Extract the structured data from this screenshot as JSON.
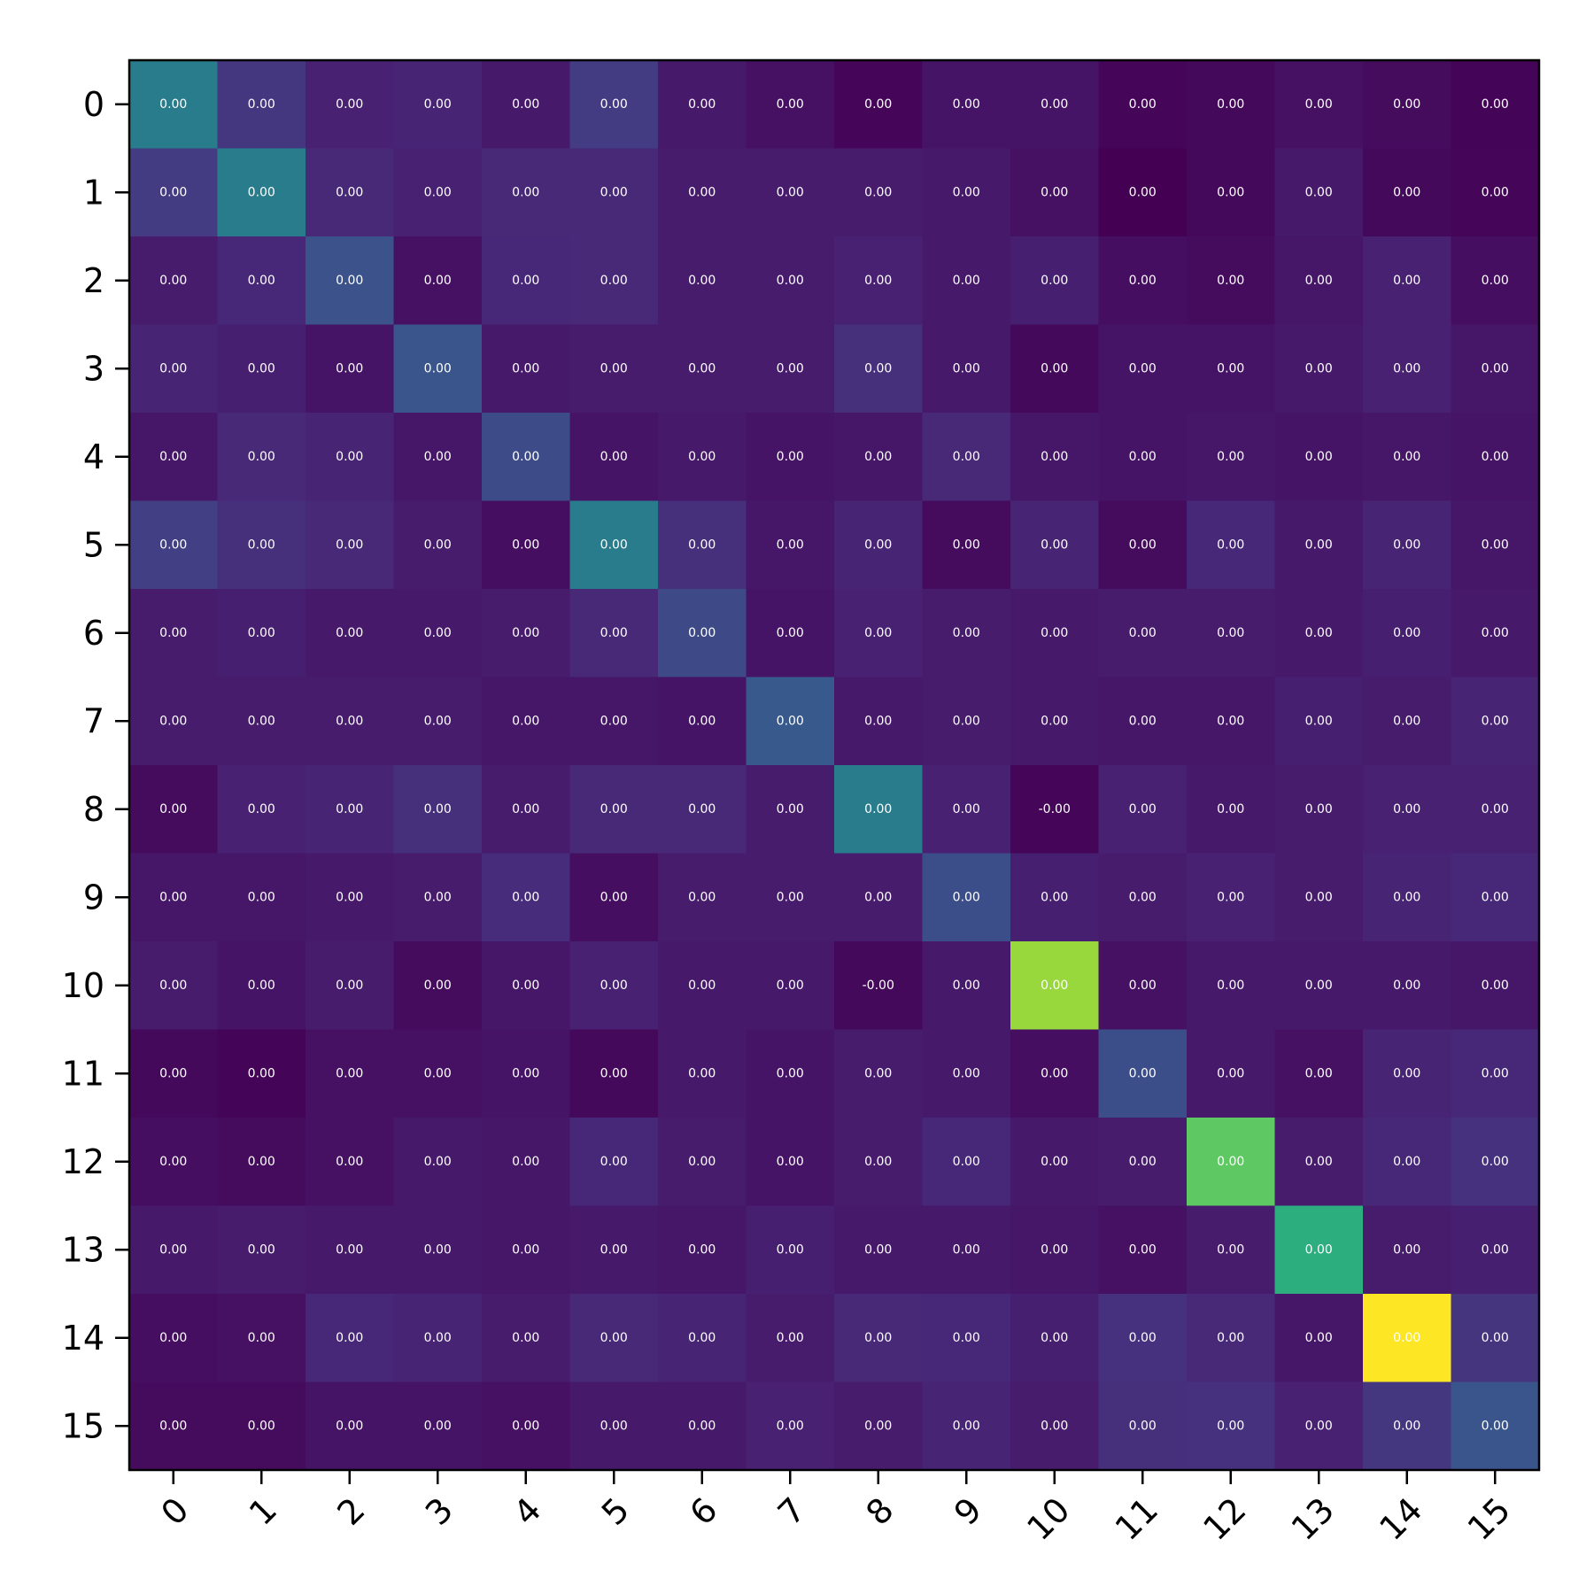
{
  "chart_data": {
    "type": "heatmap",
    "title": "",
    "xlabel": "",
    "ylabel": "",
    "colormap": "viridis",
    "x_categories": [
      "0",
      "1",
      "2",
      "3",
      "4",
      "5",
      "6",
      "7",
      "8",
      "9",
      "10",
      "11",
      "12",
      "13",
      "14",
      "15"
    ],
    "y_categories": [
      "0",
      "1",
      "2",
      "3",
      "4",
      "5",
      "6",
      "7",
      "8",
      "9",
      "10",
      "11",
      "12",
      "13",
      "14",
      "15"
    ],
    "x_tick_rotation_deg": 45,
    "grid": false,
    "cell_text_color": "#ffffff",
    "color_levels": [
      [
        0.45,
        0.2,
        0.12,
        0.13,
        0.09,
        0.22,
        0.09,
        0.06,
        0.02,
        0.07,
        0.07,
        0.02,
        0.03,
        0.06,
        0.04,
        0.01
      ],
      [
        0.22,
        0.45,
        0.15,
        0.12,
        0.15,
        0.15,
        0.1,
        0.1,
        0.1,
        0.09,
        0.06,
        0.0,
        0.03,
        0.09,
        0.03,
        0.02
      ],
      [
        0.1,
        0.14,
        0.32,
        0.06,
        0.14,
        0.15,
        0.1,
        0.1,
        0.12,
        0.09,
        0.11,
        0.05,
        0.04,
        0.08,
        0.12,
        0.05
      ],
      [
        0.13,
        0.11,
        0.07,
        0.33,
        0.09,
        0.1,
        0.1,
        0.1,
        0.17,
        0.09,
        0.03,
        0.07,
        0.07,
        0.09,
        0.12,
        0.08
      ],
      [
        0.08,
        0.15,
        0.13,
        0.08,
        0.29,
        0.07,
        0.09,
        0.07,
        0.08,
        0.15,
        0.08,
        0.07,
        0.08,
        0.07,
        0.08,
        0.07
      ],
      [
        0.23,
        0.17,
        0.15,
        0.1,
        0.05,
        0.45,
        0.17,
        0.08,
        0.13,
        0.04,
        0.13,
        0.04,
        0.14,
        0.09,
        0.13,
        0.08
      ],
      [
        0.1,
        0.11,
        0.09,
        0.09,
        0.1,
        0.15,
        0.28,
        0.07,
        0.12,
        0.1,
        0.09,
        0.1,
        0.1,
        0.09,
        0.11,
        0.09
      ],
      [
        0.1,
        0.1,
        0.1,
        0.1,
        0.08,
        0.08,
        0.07,
        0.35,
        0.09,
        0.1,
        0.09,
        0.08,
        0.08,
        0.11,
        0.1,
        0.13
      ],
      [
        0.04,
        0.12,
        0.13,
        0.17,
        0.1,
        0.15,
        0.15,
        0.1,
        0.45,
        0.12,
        0.02,
        0.12,
        0.09,
        0.1,
        0.12,
        0.12
      ],
      [
        0.08,
        0.08,
        0.09,
        0.1,
        0.16,
        0.05,
        0.1,
        0.1,
        0.1,
        0.3,
        0.11,
        0.1,
        0.12,
        0.1,
        0.13,
        0.14
      ],
      [
        0.1,
        0.07,
        0.1,
        0.04,
        0.08,
        0.12,
        0.09,
        0.09,
        0.03,
        0.09,
        0.85,
        0.06,
        0.09,
        0.09,
        0.09,
        0.08
      ],
      [
        0.03,
        0.01,
        0.06,
        0.06,
        0.07,
        0.03,
        0.09,
        0.07,
        0.1,
        0.09,
        0.05,
        0.3,
        0.09,
        0.06,
        0.13,
        0.14
      ],
      [
        0.05,
        0.04,
        0.06,
        0.09,
        0.08,
        0.14,
        0.1,
        0.07,
        0.1,
        0.14,
        0.09,
        0.1,
        0.75,
        0.1,
        0.14,
        0.18
      ],
      [
        0.09,
        0.1,
        0.09,
        0.09,
        0.08,
        0.09,
        0.08,
        0.11,
        0.09,
        0.09,
        0.08,
        0.06,
        0.1,
        0.65,
        0.1,
        0.11
      ],
      [
        0.05,
        0.06,
        0.14,
        0.13,
        0.1,
        0.15,
        0.13,
        0.1,
        0.15,
        0.14,
        0.11,
        0.18,
        0.15,
        0.08,
        1.0,
        0.19
      ],
      [
        0.04,
        0.04,
        0.07,
        0.07,
        0.06,
        0.09,
        0.09,
        0.12,
        0.1,
        0.13,
        0.1,
        0.17,
        0.18,
        0.12,
        0.2,
        0.33
      ]
    ],
    "cell_labels": [
      [
        "0.00",
        "0.00",
        "0.00",
        "0.00",
        "0.00",
        "0.00",
        "0.00",
        "0.00",
        "0.00",
        "0.00",
        "0.00",
        "0.00",
        "0.00",
        "0.00",
        "0.00",
        "0.00"
      ],
      [
        "0.00",
        "0.00",
        "0.00",
        "0.00",
        "0.00",
        "0.00",
        "0.00",
        "0.00",
        "0.00",
        "0.00",
        "0.00",
        "0.00",
        "0.00",
        "0.00",
        "0.00",
        "0.00"
      ],
      [
        "0.00",
        "0.00",
        "0.00",
        "0.00",
        "0.00",
        "0.00",
        "0.00",
        "0.00",
        "0.00",
        "0.00",
        "0.00",
        "0.00",
        "0.00",
        "0.00",
        "0.00",
        "0.00"
      ],
      [
        "0.00",
        "0.00",
        "0.00",
        "0.00",
        "0.00",
        "0.00",
        "0.00",
        "0.00",
        "0.00",
        "0.00",
        "0.00",
        "0.00",
        "0.00",
        "0.00",
        "0.00",
        "0.00"
      ],
      [
        "0.00",
        "0.00",
        "0.00",
        "0.00",
        "0.00",
        "0.00",
        "0.00",
        "0.00",
        "0.00",
        "0.00",
        "0.00",
        "0.00",
        "0.00",
        "0.00",
        "0.00",
        "0.00"
      ],
      [
        "0.00",
        "0.00",
        "0.00",
        "0.00",
        "0.00",
        "0.00",
        "0.00",
        "0.00",
        "0.00",
        "0.00",
        "0.00",
        "0.00",
        "0.00",
        "0.00",
        "0.00",
        "0.00"
      ],
      [
        "0.00",
        "0.00",
        "0.00",
        "0.00",
        "0.00",
        "0.00",
        "0.00",
        "0.00",
        "0.00",
        "0.00",
        "0.00",
        "0.00",
        "0.00",
        "0.00",
        "0.00",
        "0.00"
      ],
      [
        "0.00",
        "0.00",
        "0.00",
        "0.00",
        "0.00",
        "0.00",
        "0.00",
        "0.00",
        "0.00",
        "0.00",
        "0.00",
        "0.00",
        "0.00",
        "0.00",
        "0.00",
        "0.00"
      ],
      [
        "0.00",
        "0.00",
        "0.00",
        "0.00",
        "0.00",
        "0.00",
        "0.00",
        "0.00",
        "0.00",
        "0.00",
        "-0.00",
        "0.00",
        "0.00",
        "0.00",
        "0.00",
        "0.00"
      ],
      [
        "0.00",
        "0.00",
        "0.00",
        "0.00",
        "0.00",
        "0.00",
        "0.00",
        "0.00",
        "0.00",
        "0.00",
        "0.00",
        "0.00",
        "0.00",
        "0.00",
        "0.00",
        "0.00"
      ],
      [
        "0.00",
        "0.00",
        "0.00",
        "0.00",
        "0.00",
        "0.00",
        "0.00",
        "0.00",
        "-0.00",
        "0.00",
        "0.00",
        "0.00",
        "0.00",
        "0.00",
        "0.00",
        "0.00"
      ],
      [
        "0.00",
        "0.00",
        "0.00",
        "0.00",
        "0.00",
        "0.00",
        "0.00",
        "0.00",
        "0.00",
        "0.00",
        "0.00",
        "0.00",
        "0.00",
        "0.00",
        "0.00",
        "0.00"
      ],
      [
        "0.00",
        "0.00",
        "0.00",
        "0.00",
        "0.00",
        "0.00",
        "0.00",
        "0.00",
        "0.00",
        "0.00",
        "0.00",
        "0.00",
        "0.00",
        "0.00",
        "0.00",
        "0.00"
      ],
      [
        "0.00",
        "0.00",
        "0.00",
        "0.00",
        "0.00",
        "0.00",
        "0.00",
        "0.00",
        "0.00",
        "0.00",
        "0.00",
        "0.00",
        "0.00",
        "0.00",
        "0.00",
        "0.00"
      ],
      [
        "0.00",
        "0.00",
        "0.00",
        "0.00",
        "0.00",
        "0.00",
        "0.00",
        "0.00",
        "0.00",
        "0.00",
        "0.00",
        "0.00",
        "0.00",
        "0.00",
        "0.00",
        "0.00"
      ],
      [
        "0.00",
        "0.00",
        "0.00",
        "0.00",
        "0.00",
        "0.00",
        "0.00",
        "0.00",
        "0.00",
        "0.00",
        "0.00",
        "0.00",
        "0.00",
        "0.00",
        "0.00",
        "0.00"
      ]
    ]
  }
}
